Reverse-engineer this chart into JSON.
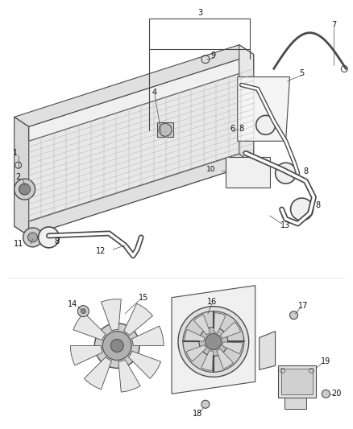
{
  "bg_color": "#ffffff",
  "line_color": "#4a4a4a",
  "gray_light": "#cccccc",
  "gray_mid": "#999999",
  "gray_dark": "#666666",
  "fig_width": 4.38,
  "fig_height": 5.33,
  "dpi": 100
}
